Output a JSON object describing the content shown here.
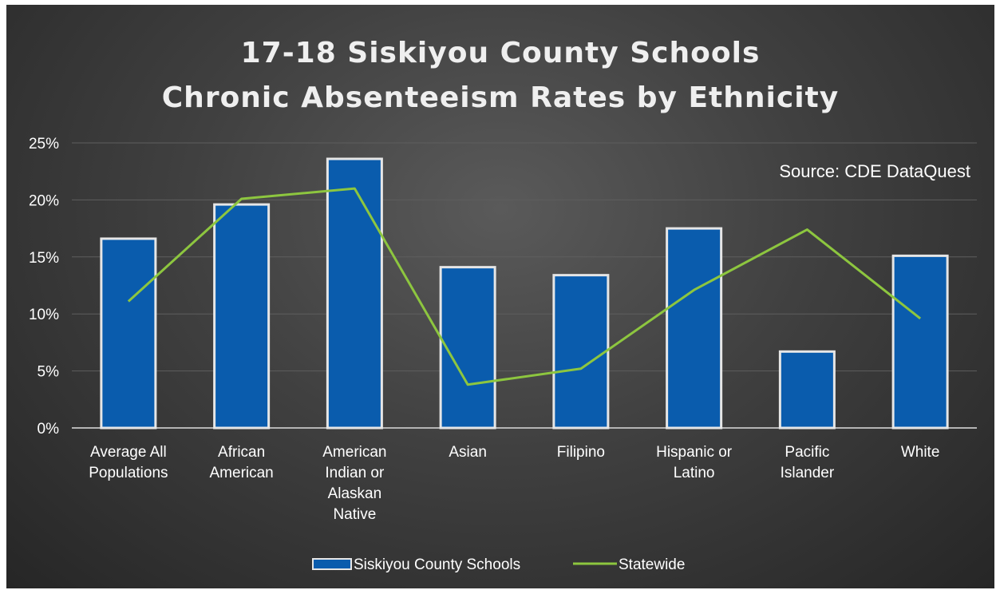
{
  "colors": {
    "bar_fill": "#0a5cad",
    "bar_border": "#e6e6e6",
    "line": "#8dc63f",
    "grid": "#5e5e5e",
    "axis": "#b4b4b4",
    "text": "#ffffff"
  },
  "chart_data": {
    "type": "bar",
    "title": "17-18 Siskiyou County Schools",
    "subtitle": "Chronic Absenteeism Rates by Ethnicity",
    "annotation": "Source:  CDE DataQuest",
    "categories": [
      [
        "Average All",
        "Populations"
      ],
      [
        "African",
        "American"
      ],
      [
        "American",
        "Indian or",
        "Alaskan",
        "Native"
      ],
      [
        "Asian"
      ],
      [
        "Filipino"
      ],
      [
        "Hispanic or",
        "Latino"
      ],
      [
        "Pacific",
        "Islander"
      ],
      [
        "White"
      ]
    ],
    "series": [
      {
        "name": "Siskiyou County Schools",
        "type": "bar",
        "values": [
          16.6,
          19.6,
          23.6,
          14.1,
          13.4,
          17.5,
          6.7,
          15.1
        ]
      },
      {
        "name": "Statewide",
        "type": "line",
        "values": [
          11.1,
          20.1,
          21.0,
          3.8,
          5.2,
          12.1,
          17.4,
          9.6
        ]
      }
    ],
    "ylim": [
      0,
      25
    ],
    "yticks": [
      "0%",
      "5%",
      "10%",
      "15%",
      "20%",
      "25%"
    ],
    "grid": true,
    "legend_position": "bottom"
  }
}
